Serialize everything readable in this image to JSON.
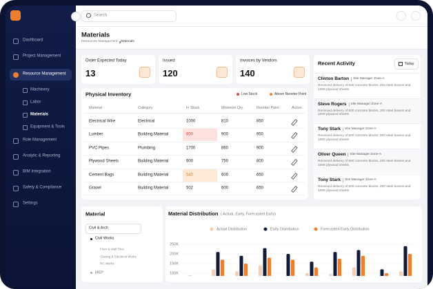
{
  "topbar": {
    "search_placeholder": "Search"
  },
  "sidebar": {
    "items": [
      {
        "label": "Dashboard"
      },
      {
        "label": "Project Management"
      },
      {
        "label": "Resource Management",
        "active": true,
        "children": [
          {
            "label": "Machinery"
          },
          {
            "label": "Labor"
          },
          {
            "label": "Materials",
            "active": true
          },
          {
            "label": "Equipment & Tools"
          }
        ]
      },
      {
        "label": "Role Management"
      },
      {
        "label": "Analytic & Reporting"
      },
      {
        "label": "BIM Integration"
      },
      {
        "label": "Safety & Compliance"
      },
      {
        "label": "Settings"
      }
    ]
  },
  "page": {
    "title": "Materials",
    "breadcrumb": [
      "Resources Management",
      "Materials"
    ]
  },
  "stats": [
    {
      "label": "Order Expected Today",
      "value": 13
    },
    {
      "label": "Issued",
      "value": 120
    },
    {
      "label": "Invoices by Vendors",
      "value": 140
    }
  ],
  "inventory": {
    "title": "Physical Inventory",
    "legend": [
      {
        "label": "Low Stock",
        "color": "#e8453c",
        "fill": "#fde1de"
      },
      {
        "label": "Above Reorder Point",
        "color": "#f07f2d",
        "fill": "#fde9d6"
      }
    ],
    "columns": [
      "Material",
      "Category",
      "In Stock",
      "Minimum Qty.",
      "Reorder Point",
      "Action"
    ],
    "rows": [
      {
        "cells": [
          "Electrical Wire",
          "Electrical",
          1000,
          810,
          850
        ]
      },
      {
        "cells": [
          "Lumber",
          "Building Material",
          800,
          900,
          950
        ],
        "legend": 0
      },
      {
        "cells": [
          "PVC Pipes",
          "Plumbing",
          1700,
          860,
          900
        ]
      },
      {
        "cells": [
          "Plywood Sheets",
          "Building Material",
          900,
          750,
          800
        ]
      },
      {
        "cells": [
          "Cement Bags",
          "Building Material",
          540,
          600,
          650
        ],
        "legend": 1
      },
      {
        "cells": [
          "Gravel",
          "Building Material",
          502,
          600,
          650
        ]
      }
    ]
  },
  "activity": {
    "title": "Recent Activity",
    "filter": "Today",
    "items": [
      {
        "name": "Clinton Barton",
        "role": "Site Manager Zone-A",
        "text": "Received delivery of 500 concrete blocks, 200 steel beams and 1000 plywood sheets"
      },
      {
        "name": "Steve Rogers",
        "role": "Site Manager Zone-A",
        "text": "Received delivery of 500 concrete blocks, 200 steel beams and 1000 plywood sheets"
      },
      {
        "name": "Tony Stark",
        "role": "Site Manager Zone-A",
        "text": "Received delivery of 500 concrete blocks, 200 steel beams and 1000 plywood sheets"
      },
      {
        "name": "Oliver Queen",
        "role": "Site Manager Zone-A",
        "text": "Received delivery of 500 concrete blocks, 200 steel beams and 1000 plywood sheets"
      },
      {
        "name": "Tony Stark",
        "role": "Site Manager Zone-A",
        "text": "Received delivery of 500 concrete blocks, 200 steel beams and 1000 plywood sheets"
      }
    ]
  },
  "material": {
    "title": "Material",
    "select": "Civil & Arch",
    "tree": [
      {
        "label": "Civil Works",
        "children": [
          "Floor & Wall Tiles",
          "Glazing & Electrical Works",
          "RC Works"
        ]
      },
      {
        "label": "MEP"
      }
    ]
  },
  "chart_data": {
    "type": "bar",
    "title": "Material Distribution",
    "subtitle": "( Actual, Early, Forecasted Early)",
    "series": [
      {
        "name": "Actual Distribution",
        "color": "#f8cdb0",
        "values": [
          90000,
          120000,
          110000,
          140000,
          80000,
          100000,
          95000,
          130000,
          85000,
          110000
        ]
      },
      {
        "name": "Early Distribution",
        "color": "#0f1a3d",
        "values": [
          70000,
          210000,
          190000,
          230000,
          200000,
          160000,
          210000,
          220000,
          120000,
          240000
        ]
      },
      {
        "name": "Forecasted Early Distribution",
        "color": "#f07f2d",
        "values": [
          60000,
          170000,
          150000,
          180000,
          170000,
          130000,
          175000,
          190000,
          100000,
          200000
        ]
      }
    ],
    "ylim": [
      0,
      250000
    ],
    "yticks": [
      {
        "value": 250000,
        "label": "250K"
      },
      {
        "value": 200000,
        "label": "200K"
      },
      {
        "value": 150000,
        "label": "150K"
      },
      {
        "value": 100000,
        "label": "100K"
      }
    ],
    "grid": true
  }
}
